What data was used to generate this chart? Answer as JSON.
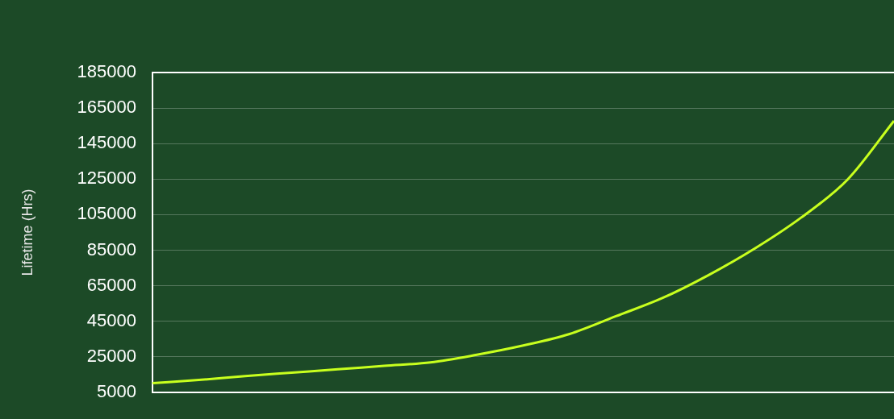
{
  "chart_data": {
    "type": "line",
    "ylabel": "Lifetime (Hrs)",
    "categories": [
      null,
      null,
      null,
      null,
      null,
      null,
      null,
      null,
      null,
      null,
      null,
      null,
      null,
      null,
      null,
      null,
      null
    ],
    "values": [
      10100,
      11900,
      14100,
      16000,
      17900,
      19900,
      21800,
      26100,
      31300,
      37800,
      47800,
      58000,
      71000,
      86000,
      103400,
      124800,
      157800
    ],
    "color": "#c8ff1e",
    "ylim": [
      5000,
      185000
    ],
    "yticks": [
      5000,
      25000,
      45000,
      65000,
      85000,
      105000,
      125000,
      145000,
      165000,
      185000
    ],
    "grid": "y",
    "marker": "none",
    "line_style": "solid",
    "tick_labels": "y"
  }
}
